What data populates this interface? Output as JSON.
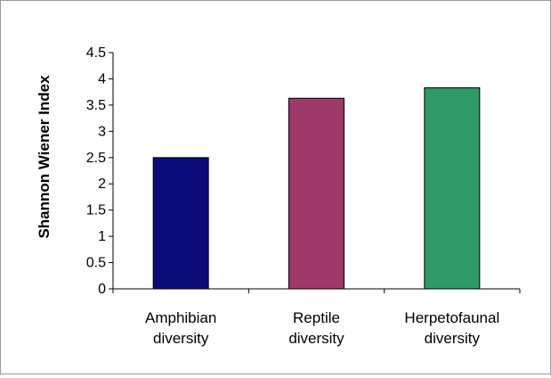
{
  "chart_data": {
    "type": "bar",
    "title": "",
    "xlabel": "",
    "ylabel": "Shannon Wiener Index",
    "categories": [
      [
        "Amphibian",
        "diversity"
      ],
      [
        "Reptile",
        "diversity"
      ],
      [
        "Herpetofaunal",
        "diversity"
      ]
    ],
    "values": [
      2.5,
      3.63,
      3.83
    ],
    "bar_colors": [
      "#0a0a78",
      "#a0386a",
      "#2e9a66"
    ],
    "ylim": [
      0,
      4.5
    ],
    "yticks": [
      "0",
      "0.5",
      "1",
      "1.5",
      "2",
      "2.5",
      "3",
      "3.5",
      "4",
      "4.5"
    ],
    "grid": false,
    "legend": "none"
  }
}
